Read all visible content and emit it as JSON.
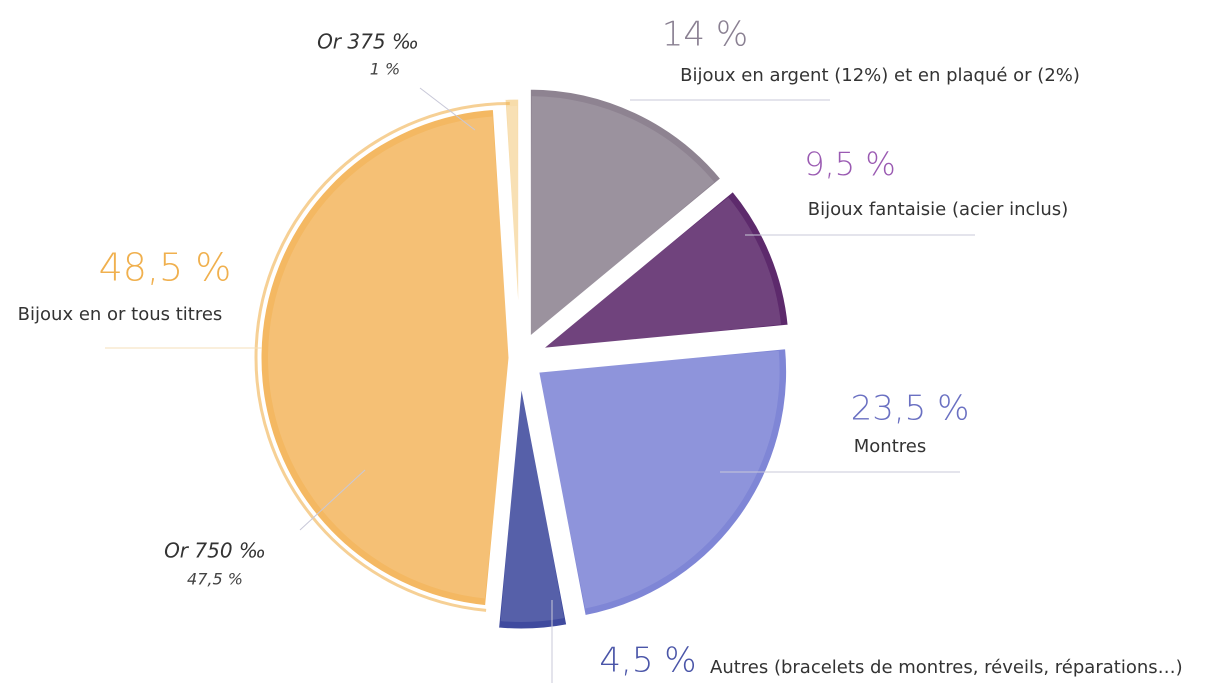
{
  "chart_data": {
    "type": "pie",
    "categories": [
      "Bijoux en argent (12%) et en plaqué or (2%)",
      "Bijoux fantaisie (acier inclus)",
      "Montres",
      "Autres (bracelets de montres, réveils, réparations…)",
      "Or 750 ‰",
      "Or 375 ‰"
    ],
    "values": [
      14,
      9.5,
      23.5,
      4.5,
      47.5,
      1
    ],
    "value_labels": [
      "14 %",
      "9,5 %",
      "23,5 %",
      "4,5 %",
      "47,5 %",
      "1 %"
    ],
    "colors": [
      "#8e8391",
      "#5d2a6c",
      "#7f86d6",
      "#3f4a9e",
      "#f4b862",
      "#f7dcaa"
    ],
    "group": {
      "label": "Bijoux en or tous titres",
      "value": 48.5,
      "value_label": "48,5 %",
      "color": "#f0b04e"
    }
  }
}
